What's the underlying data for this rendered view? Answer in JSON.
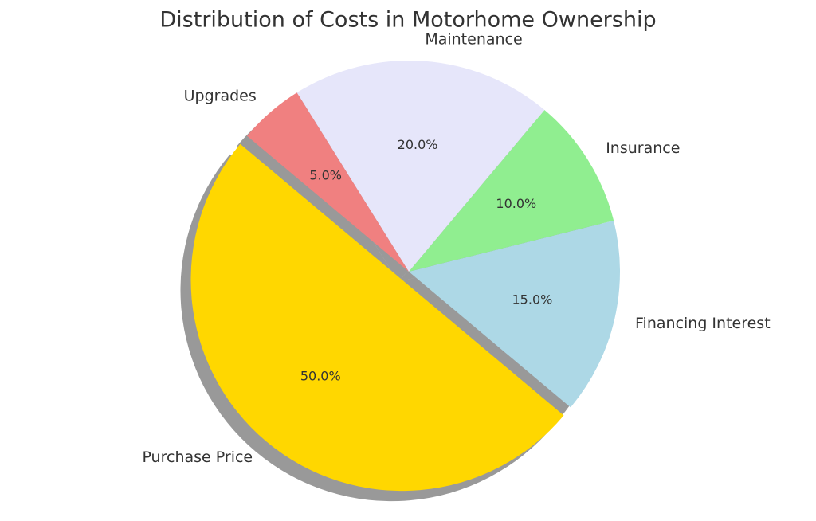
{
  "chart_data": {
    "type": "pie",
    "title": "Distribution of Costs in Motorhome Ownership",
    "categories": [
      "Purchase Price",
      "Financing Interest",
      "Insurance",
      "Maintenance",
      "Upgrades"
    ],
    "values": [
      50,
      15,
      10,
      20,
      5
    ],
    "value_labels": [
      "50.0%",
      "15.0%",
      "10.0%",
      "20.0%",
      "5.0%"
    ],
    "colors": [
      "#ffd700",
      "#add8e6",
      "#90ee90",
      "#e6e6fa",
      "#f08080"
    ]
  }
}
